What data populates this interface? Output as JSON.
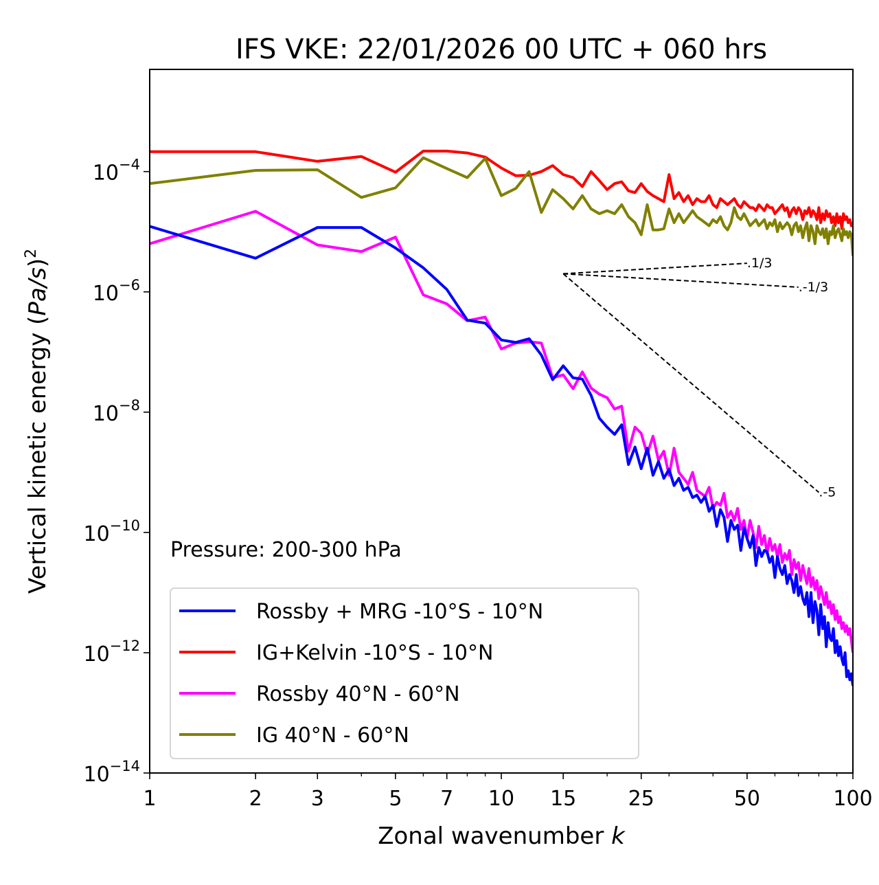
{
  "chart_data": {
    "type": "line",
    "title": "IFS VKE: 22/01/2026 00 UTC + 060 hrs",
    "xlabel": "Zonal wavenumber k",
    "xlabel_main": "Zonal wavenumber ",
    "xlabel_var": "k",
    "ylabel": "Vertical kinetic energy (Pa/s)^2",
    "ylabel_main": "Vertical kinetic energy (",
    "ylabel_var": "Pa/s",
    "ylabel_close": ")",
    "ylabel_sup": "2",
    "xscale": "log",
    "yscale": "log",
    "xlim": [
      1,
      100
    ],
    "ylim": [
      1e-14,
      0.005
    ],
    "grid": false,
    "xticks": [
      1,
      2,
      3,
      5,
      7,
      10,
      15,
      25,
      50,
      100
    ],
    "xtick_labels": [
      "1",
      "2",
      "3",
      "5",
      "7",
      "10",
      "15",
      "25",
      "50",
      "100"
    ],
    "yticks": [
      1e-14,
      1e-12,
      1e-10,
      1e-08,
      1e-06,
      0.0001
    ],
    "ytick_labels": [
      {
        "base": "10",
        "exp": "−14"
      },
      {
        "base": "10",
        "exp": "−12"
      },
      {
        "base": "10",
        "exp": "−10"
      },
      {
        "base": "10",
        "exp": "−8"
      },
      {
        "base": "10",
        "exp": "−6"
      },
      {
        "base": "10",
        "exp": "−4"
      }
    ],
    "annotation": "Pressure: 200-300 hPa",
    "legend_position": "lower-left",
    "reference_slopes": [
      {
        "label": "1/3",
        "slope": 0.3333,
        "k_start": 15,
        "k_end": 50,
        "E_start": 2e-06
      },
      {
        "label": "-1/3",
        "slope": -0.3333,
        "k_start": 15,
        "k_end": 70,
        "E_start": 2e-06
      },
      {
        "label": "-5",
        "slope": -5,
        "k_start": 15,
        "k_end": 80,
        "E_start": 2e-06
      }
    ],
    "x": [
      1,
      2,
      3,
      4,
      5,
      6,
      7,
      8,
      9,
      10,
      11,
      12,
      13,
      14,
      15,
      16,
      17,
      18,
      19,
      20,
      21,
      22,
      23,
      24,
      25,
      26,
      27,
      28,
      29,
      30,
      31,
      32,
      33,
      34,
      35,
      36,
      37,
      38,
      39,
      40,
      41,
      42,
      43,
      44,
      45,
      46,
      47,
      48,
      49,
      50,
      51,
      52,
      53,
      54,
      55,
      56,
      57,
      58,
      59,
      60,
      61,
      62,
      63,
      64,
      65,
      66,
      67,
      68,
      69,
      70,
      71,
      72,
      73,
      74,
      75,
      76,
      77,
      78,
      79,
      80,
      81,
      82,
      83,
      84,
      85,
      86,
      87,
      88,
      89,
      90,
      91,
      92,
      93,
      94,
      95,
      96,
      97,
      98,
      99,
      100
    ],
    "series": [
      {
        "name": "Rossby + MRG -10°S - 10°N",
        "color": "#0000ff",
        "log10_values": [
          -4.91,
          -5.44,
          -4.93,
          -4.93,
          -5.27,
          -5.6,
          -5.96,
          -6.47,
          -6.52,
          -6.8,
          -6.84,
          -6.78,
          -7.05,
          -7.46,
          -7.23,
          -7.43,
          -7.45,
          -7.72,
          -8.1,
          -8.25,
          -8.37,
          -8.21,
          -8.87,
          -8.58,
          -8.94,
          -8.6,
          -9.05,
          -8.82,
          -9.1,
          -8.95,
          -9.22,
          -9.1,
          -9.3,
          -9.25,
          -9.42,
          -9.38,
          -9.5,
          -9.4,
          -9.65,
          -9.55,
          -9.9,
          -9.62,
          -9.75,
          -10.15,
          -9.8,
          -9.95,
          -9.88,
          -10.3,
          -9.92,
          -10.1,
          -10.25,
          -10.05,
          -10.55,
          -10.25,
          -10.4,
          -10.3,
          -10.32,
          -10.5,
          -10.4,
          -10.75,
          -10.4,
          -10.6,
          -10.7,
          -10.55,
          -10.85,
          -10.7,
          -10.8,
          -11.0,
          -10.7,
          -11.05,
          -10.9,
          -11.1,
          -11.2,
          -11.0,
          -11.4,
          -11.0,
          -11.5,
          -11.15,
          -11.3,
          -11.7,
          -11.2,
          -11.6,
          -11.4,
          -11.9,
          -11.5,
          -11.75,
          -11.8,
          -11.6,
          -12.0,
          -11.8,
          -12.05,
          -11.9,
          -12.1,
          -12.2,
          -12.0,
          -12.4,
          -12.3,
          -12.45,
          -12.35,
          -12.55
        ]
      },
      {
        "name": "IG+Kelvin -10°S - 10°N",
        "color": "#ff0000",
        "log10_values": [
          -3.67,
          -3.67,
          -3.83,
          -3.75,
          -4.01,
          -3.66,
          -3.66,
          -3.69,
          -3.76,
          -3.94,
          -4.07,
          -4.06,
          -4.0,
          -3.9,
          -4.05,
          -4.1,
          -4.25,
          -4.0,
          -4.15,
          -4.3,
          -4.2,
          -4.17,
          -4.32,
          -4.35,
          -4.2,
          -4.33,
          -4.4,
          -4.45,
          -4.5,
          -4.05,
          -4.45,
          -4.35,
          -4.5,
          -4.4,
          -4.55,
          -4.45,
          -4.5,
          -4.5,
          -4.4,
          -4.55,
          -4.6,
          -4.45,
          -4.5,
          -4.55,
          -4.5,
          -4.45,
          -4.55,
          -4.6,
          -4.5,
          -4.55,
          -4.6,
          -4.6,
          -4.65,
          -4.55,
          -4.6,
          -4.65,
          -4.55,
          -4.6,
          -4.6,
          -4.7,
          -4.65,
          -4.6,
          -4.55,
          -4.65,
          -4.6,
          -4.75,
          -4.65,
          -4.6,
          -4.7,
          -4.6,
          -4.65,
          -4.8,
          -4.65,
          -4.7,
          -4.6,
          -4.75,
          -4.65,
          -4.7,
          -4.8,
          -4.6,
          -4.85,
          -4.7,
          -4.8,
          -4.65,
          -4.75,
          -4.7,
          -4.85,
          -4.75,
          -4.9,
          -4.7,
          -4.85,
          -4.75,
          -4.95,
          -4.7,
          -4.8,
          -4.75,
          -4.85,
          -4.8,
          -4.9,
          -4.85
        ]
      },
      {
        "name": "Rossby 40°N - 60°N",
        "color": "#ff00ff",
        "log10_values": [
          -5.2,
          -4.66,
          -5.22,
          -5.33,
          -5.09,
          -6.05,
          -6.2,
          -6.48,
          -6.42,
          -6.95,
          -6.85,
          -6.83,
          -6.85,
          -7.43,
          -7.38,
          -7.61,
          -7.33,
          -7.6,
          -7.7,
          -7.76,
          -7.95,
          -7.9,
          -8.65,
          -8.25,
          -8.35,
          -8.7,
          -8.4,
          -8.8,
          -8.65,
          -9.05,
          -8.6,
          -9.0,
          -9.1,
          -9.2,
          -9.0,
          -9.3,
          -9.35,
          -9.4,
          -9.25,
          -9.6,
          -9.5,
          -9.55,
          -9.35,
          -9.75,
          -9.65,
          -9.8,
          -9.6,
          -9.95,
          -9.8,
          -10.1,
          -9.8,
          -10.0,
          -10.25,
          -9.9,
          -10.2,
          -10.05,
          -10.35,
          -10.1,
          -10.3,
          -10.2,
          -10.4,
          -10.2,
          -10.5,
          -10.35,
          -10.45,
          -10.3,
          -10.7,
          -10.45,
          -10.6,
          -10.5,
          -10.8,
          -10.55,
          -10.7,
          -10.85,
          -10.6,
          -10.9,
          -10.75,
          -10.95,
          -10.8,
          -11.1,
          -10.9,
          -11.05,
          -11.2,
          -11.0,
          -11.25,
          -11.15,
          -11.35,
          -11.2,
          -11.45,
          -11.3,
          -11.5,
          -11.4,
          -11.6,
          -11.5,
          -11.65,
          -11.55,
          -11.7,
          -11.6,
          -11.8,
          -12.0
        ]
      },
      {
        "name": "IG 40°N - 60°N",
        "color": "#808000",
        "log10_values": [
          -4.2,
          -3.98,
          -3.97,
          -4.43,
          -4.27,
          -3.77,
          -3.95,
          -4.1,
          -3.78,
          -4.4,
          -4.28,
          -4.0,
          -4.68,
          -4.3,
          -4.45,
          -4.62,
          -4.4,
          -4.62,
          -4.7,
          -4.65,
          -4.7,
          -4.55,
          -4.75,
          -4.85,
          -5.05,
          -4.55,
          -4.97,
          -4.97,
          -4.95,
          -4.62,
          -4.85,
          -4.7,
          -4.85,
          -4.75,
          -4.65,
          -4.75,
          -4.8,
          -4.85,
          -4.9,
          -4.8,
          -4.85,
          -4.75,
          -4.9,
          -4.97,
          -4.85,
          -4.6,
          -4.75,
          -4.8,
          -4.7,
          -4.8,
          -4.9,
          -4.85,
          -4.8,
          -4.9,
          -4.85,
          -4.8,
          -4.95,
          -4.85,
          -4.9,
          -4.8,
          -5.0,
          -4.85,
          -4.95,
          -4.9,
          -4.85,
          -4.9,
          -5.05,
          -4.9,
          -4.85,
          -5.0,
          -4.9,
          -5.1,
          -4.95,
          -4.85,
          -5.15,
          -4.9,
          -5.0,
          -5.2,
          -4.9,
          -5.0,
          -5.05,
          -4.95,
          -5.1,
          -4.95,
          -5.2,
          -5.0,
          -5.05,
          -4.9,
          -5.1,
          -5.0,
          -4.95,
          -5.05,
          -5.15,
          -4.95,
          -5.05,
          -5.0,
          -5.1,
          -5.0,
          -5.05,
          -5.4
        ]
      }
    ]
  }
}
